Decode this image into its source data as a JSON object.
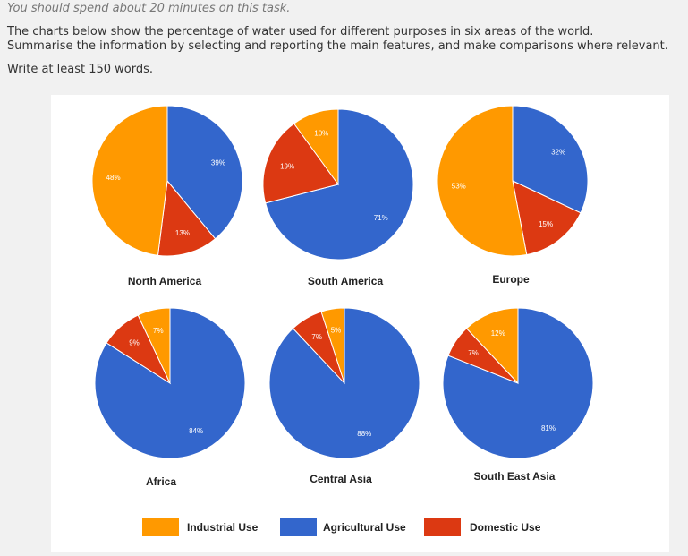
{
  "instructions": {
    "time_note": "You should spend about 20 minutes on this task.",
    "task_line1": "The charts below show the percentage of water used for different purposes in six areas of the world.",
    "task_line2": "Summarise the information by selecting and reporting the main features, and make comparisons where relevant.",
    "word_count": "Write at least 150 words."
  },
  "colors": {
    "industrial": "#ff9900",
    "agricultural": "#3366cc",
    "domestic": "#dc3912"
  },
  "chart_data": {
    "type": "pie",
    "series_names": [
      "Industrial Use",
      "Agricultural Use",
      "Domestic Use"
    ],
    "legend": [
      {
        "key": "industrial",
        "label": "Industrial Use"
      },
      {
        "key": "agricultural",
        "label": "Agricultural Use"
      },
      {
        "key": "domestic",
        "label": "Domestic Use"
      }
    ],
    "legend_position": "bottom",
    "charts": [
      {
        "title": "North America",
        "slices": [
          {
            "key": "agricultural",
            "value": 39,
            "label": "39%"
          },
          {
            "key": "domestic",
            "value": 13,
            "label": "13%"
          },
          {
            "key": "industrial",
            "value": 48,
            "label": "48%"
          }
        ]
      },
      {
        "title": "South America",
        "slices": [
          {
            "key": "agricultural",
            "value": 71,
            "label": "71%"
          },
          {
            "key": "domestic",
            "value": 19,
            "label": "19%"
          },
          {
            "key": "industrial",
            "value": 10,
            "label": "10%"
          }
        ]
      },
      {
        "title": "Europe",
        "slices": [
          {
            "key": "agricultural",
            "value": 32,
            "label": "32%"
          },
          {
            "key": "domestic",
            "value": 15,
            "label": "15%"
          },
          {
            "key": "industrial",
            "value": 53,
            "label": "53%"
          }
        ]
      },
      {
        "title": "Africa",
        "slices": [
          {
            "key": "agricultural",
            "value": 84,
            "label": "84%"
          },
          {
            "key": "domestic",
            "value": 9,
            "label": "9%"
          },
          {
            "key": "industrial",
            "value": 7,
            "label": "7%"
          }
        ]
      },
      {
        "title": "Central Asia",
        "slices": [
          {
            "key": "agricultural",
            "value": 88,
            "label": "88%"
          },
          {
            "key": "domestic",
            "value": 7,
            "label": "7%"
          },
          {
            "key": "industrial",
            "value": 5,
            "label": "5%"
          }
        ]
      },
      {
        "title": "South East Asia",
        "slices": [
          {
            "key": "agricultural",
            "value": 81,
            "label": "81%"
          },
          {
            "key": "domestic",
            "value": 7,
            "label": "7%"
          },
          {
            "key": "industrial",
            "value": 12,
            "label": "12%"
          }
        ]
      }
    ]
  }
}
